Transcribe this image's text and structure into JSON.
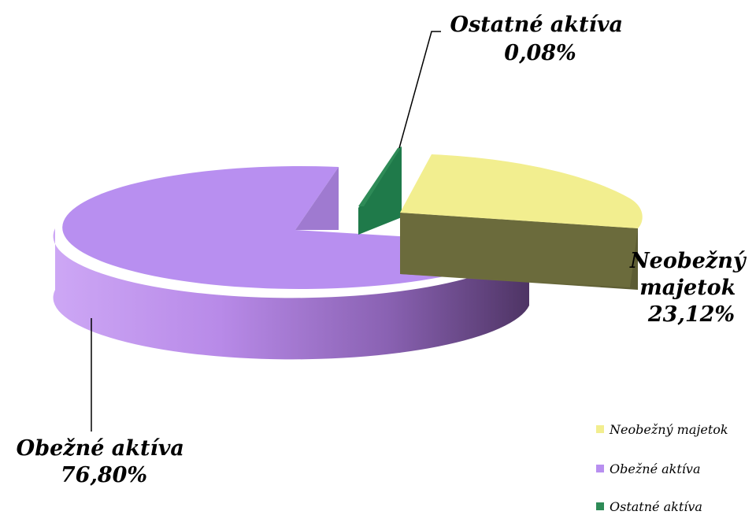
{
  "chart_data": {
    "type": "pie",
    "variant": "3d-exploded",
    "slices": [
      {
        "name": "Neobežný majetok",
        "value": 23.12,
        "value_label": "23,12%",
        "label_lines": [
          "Neobežný",
          "majetok",
          "23,12%"
        ],
        "top_color": "#f2ee8f",
        "side_color": "#6b6b3c"
      },
      {
        "name": "Obežné aktíva",
        "value": 76.8,
        "value_label": "76,80%",
        "label_lines": [
          "Obežné aktíva",
          "76,80%"
        ],
        "top_color": "#b88ff0",
        "side_color": "#5a3f73"
      },
      {
        "name": "Ostatné aktíva",
        "value": 0.08,
        "value_label": "0,08%",
        "label_lines": [
          "Ostatné aktíva",
          "0,08%"
        ],
        "top_color": "#2e8b57",
        "side_color": "#1f6b43"
      }
    ],
    "legend": {
      "position": "bottom-right",
      "entries": [
        "Neobežný majetok",
        "Obežné aktíva",
        "Ostatné aktíva"
      ]
    }
  }
}
